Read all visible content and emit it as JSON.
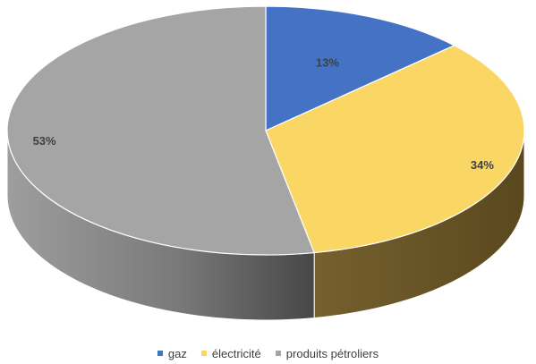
{
  "chart_data": {
    "type": "pie",
    "style": "3d",
    "categories": [
      "gaz",
      "électricité",
      "produits pétroliers"
    ],
    "values": [
      13,
      34,
      53
    ],
    "labels": [
      "13%",
      "34%",
      "53%"
    ],
    "colors": [
      "#4472C4",
      "#FAD765",
      "#A5A5A5"
    ],
    "side_colors": [
      "#2E4F8A",
      "#6B5426",
      "#4D4D4D"
    ],
    "legend_position": "bottom",
    "title": ""
  }
}
